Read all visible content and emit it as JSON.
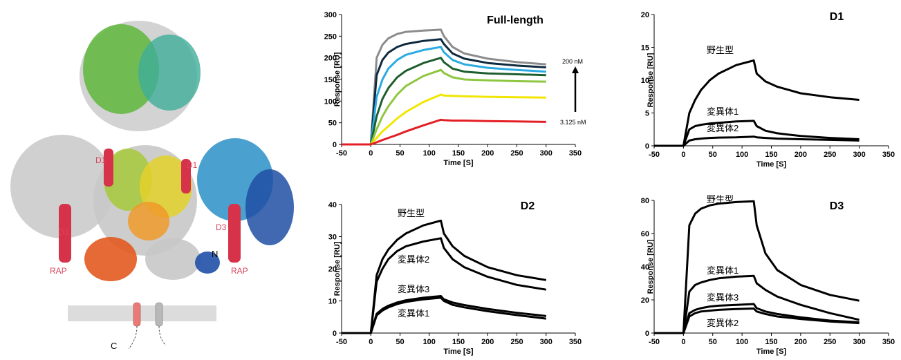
{
  "structure_labels": [
    "D1",
    "D1",
    "D3",
    "D3",
    "RAP",
    "RAP",
    "N",
    "C"
  ],
  "chart_data": [
    {
      "type": "line",
      "title": "Full-length",
      "xlabel": "Time [S]",
      "ylabel": "Response [RU]",
      "xlim": [
        -50,
        350
      ],
      "xticks": [
        -50,
        0,
        50,
        100,
        150,
        200,
        250,
        300,
        350
      ],
      "ylim": [
        0,
        300
      ],
      "yticks": [
        0,
        50,
        100,
        150,
        200,
        250,
        300
      ],
      "annotations": [
        "200 nM",
        "3.125 nM"
      ],
      "x": [
        -50,
        0,
        10,
        20,
        30,
        45,
        60,
        90,
        120,
        125,
        140,
        160,
        200,
        250,
        300
      ],
      "series": [
        {
          "color": "#8c8c8c",
          "values": [
            0,
            0,
            200,
            230,
            245,
            255,
            260,
            263,
            265,
            250,
            225,
            210,
            198,
            190,
            185
          ]
        },
        {
          "color": "#0f2a3f",
          "values": [
            0,
            0,
            160,
            195,
            212,
            225,
            232,
            239,
            243,
            232,
            210,
            198,
            188,
            182,
            178
          ]
        },
        {
          "color": "#29abe2",
          "values": [
            0,
            0,
            110,
            150,
            175,
            195,
            207,
            218,
            225,
            213,
            195,
            185,
            177,
            172,
            168
          ]
        },
        {
          "color": "#1e5e2e",
          "values": [
            0,
            0,
            65,
            105,
            130,
            155,
            170,
            188,
            200,
            190,
            175,
            168,
            164,
            162,
            160
          ]
        },
        {
          "color": "#8dc63f",
          "values": [
            0,
            0,
            35,
            65,
            88,
            115,
            135,
            158,
            172,
            165,
            155,
            150,
            148,
            146,
            145
          ]
        },
        {
          "color": "#f2e600",
          "values": [
            0,
            0,
            15,
            30,
            42,
            60,
            75,
            98,
            115,
            113,
            112,
            111,
            110,
            109,
            108
          ]
        },
        {
          "color": "#e31e24",
          "values": [
            0,
            0,
            5,
            10,
            15,
            22,
            30,
            44,
            57,
            56,
            55,
            55,
            54,
            53,
            52
          ]
        }
      ]
    },
    {
      "type": "line",
      "title": "D1",
      "xlabel": "Time [S]",
      "ylabel": "Response [RU]",
      "xlim": [
        -50,
        350
      ],
      "xticks": [
        -50,
        0,
        50,
        100,
        150,
        200,
        250,
        300,
        350
      ],
      "ylim": [
        0,
        20
      ],
      "yticks": [
        0,
        5,
        10,
        15,
        20
      ],
      "x": [
        -50,
        0,
        10,
        20,
        30,
        45,
        60,
        90,
        120,
        125,
        140,
        160,
        200,
        250,
        300
      ],
      "series": [
        {
          "name": "野生型",
          "color": "#000000",
          "values": [
            0,
            0,
            5,
            7,
            8.5,
            10,
            11,
            12.3,
            13,
            11,
            9.8,
            9,
            8,
            7.4,
            7
          ]
        },
        {
          "name": "変異体1",
          "color": "#000000",
          "values": [
            0,
            0,
            2.5,
            3,
            3.2,
            3.4,
            3.5,
            3.7,
            3.8,
            3,
            2.3,
            1.9,
            1.5,
            1.2,
            1
          ]
        },
        {
          "name": "変異体2",
          "color": "#000000",
          "values": [
            0,
            0,
            0.8,
            1,
            1.1,
            1.2,
            1.25,
            1.3,
            1.4,
            1.3,
            1.2,
            1.1,
            1,
            0.9,
            0.8
          ]
        }
      ]
    },
    {
      "type": "line",
      "title": "D2",
      "xlabel": "Time [S]",
      "ylabel": "Response [RU]",
      "xlim": [
        -50,
        350
      ],
      "xticks": [
        -50,
        0,
        50,
        100,
        150,
        200,
        250,
        300,
        350
      ],
      "ylim": [
        0,
        40
      ],
      "yticks": [
        0,
        10,
        20,
        30,
        40
      ],
      "x": [
        -50,
        0,
        10,
        20,
        30,
        45,
        60,
        90,
        120,
        125,
        140,
        160,
        200,
        250,
        300
      ],
      "series": [
        {
          "name": "野生型",
          "color": "#000000",
          "values": [
            0,
            0,
            18,
            23,
            26,
            29,
            31,
            33.5,
            35,
            31,
            27,
            24,
            20.5,
            18,
            16.5
          ]
        },
        {
          "name": "変異体2",
          "color": "#000000",
          "values": [
            0,
            0,
            16,
            20,
            23,
            25.5,
            27,
            28.5,
            29.5,
            26.5,
            23,
            20.5,
            17.5,
            15,
            13.5
          ]
        },
        {
          "name": "変異体3",
          "color": "#000000",
          "values": [
            0,
            0,
            6,
            7.5,
            8.5,
            9.5,
            10.2,
            11,
            11.5,
            10.5,
            9.5,
            8.7,
            7.5,
            6.3,
            5.3
          ]
        },
        {
          "name": "変異体1",
          "color": "#000000",
          "values": [
            0,
            0,
            5.5,
            7,
            8,
            9,
            9.7,
            10.5,
            11,
            10,
            8.8,
            8,
            6.8,
            5.6,
            4.5
          ]
        }
      ]
    },
    {
      "type": "line",
      "title": "D3",
      "xlabel": "Time [S]",
      "ylabel": "Response [RU]",
      "xlim": [
        -50,
        350
      ],
      "xticks": [
        -50,
        0,
        50,
        100,
        150,
        200,
        250,
        300,
        350
      ],
      "ylim": [
        0,
        80
      ],
      "yticks": [
        0,
        20,
        40,
        60,
        80
      ],
      "x": [
        -50,
        0,
        10,
        20,
        30,
        45,
        60,
        90,
        120,
        125,
        140,
        160,
        200,
        250,
        300
      ],
      "series": [
        {
          "name": "野生型",
          "color": "#000000",
          "values": [
            0,
            0,
            65,
            72,
            75,
            77,
            78,
            79,
            79.5,
            65,
            48,
            38,
            29,
            23,
            19.5
          ]
        },
        {
          "name": "変異体1",
          "color": "#000000",
          "values": [
            0,
            0,
            25,
            29,
            30.5,
            32,
            33,
            34,
            34.5,
            30,
            26,
            22,
            17,
            12,
            8
          ]
        },
        {
          "name": "変異体3",
          "color": "#000000",
          "values": [
            0,
            0,
            12,
            14,
            15,
            16,
            16.5,
            17,
            17.5,
            15,
            13,
            11.5,
            9.5,
            7.5,
            6.5
          ]
        },
        {
          "name": "変異体2",
          "color": "#000000",
          "values": [
            0,
            0,
            10,
            12,
            13,
            13.5,
            14,
            14.5,
            14.8,
            13,
            11.5,
            10,
            8.5,
            7,
            6
          ]
        }
      ]
    }
  ]
}
